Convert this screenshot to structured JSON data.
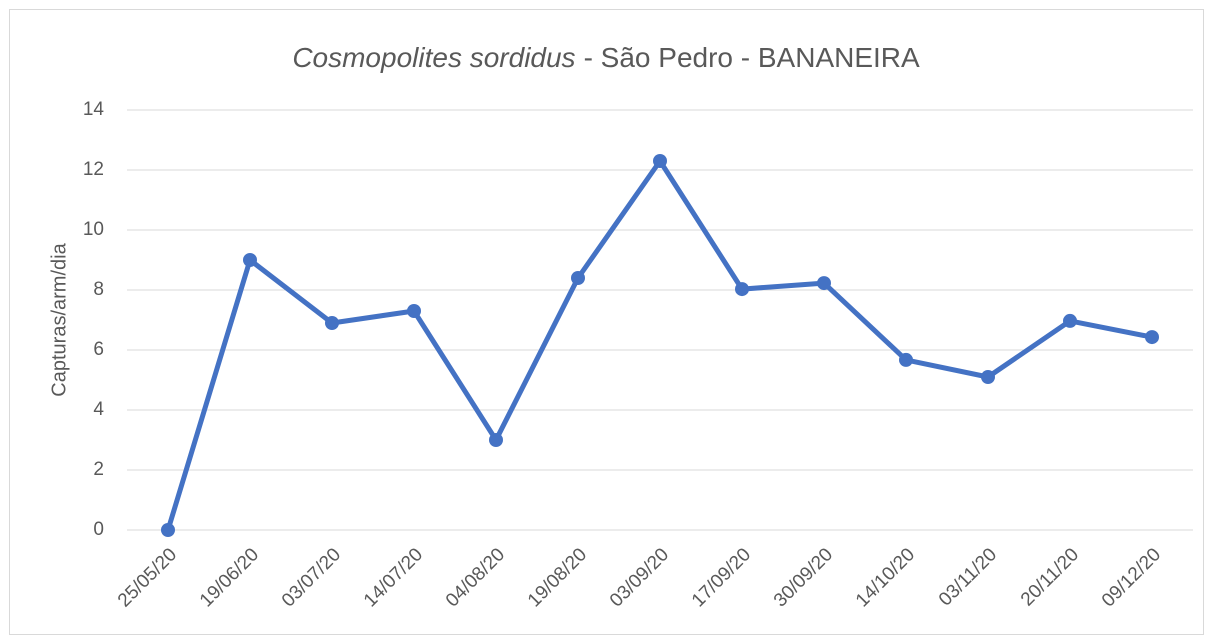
{
  "chart_data": {
    "type": "line",
    "title": {
      "italic": "Cosmopolites sordidus",
      "rest": "- São Pedro - BANANEIRA"
    },
    "y_label": "Capturas/arm/dia",
    "categories": [
      "25/05/20",
      "19/06/20",
      "03/07/20",
      "14/07/20",
      "04/08/20",
      "19/08/20",
      "03/09/20",
      "17/09/20",
      "30/09/20",
      "14/10/20",
      "03/11/20",
      "20/11/20",
      "09/12/20"
    ],
    "values": [
      0,
      9.0,
      6.9,
      7.3,
      3.0,
      8.4,
      12.3,
      8.03,
      8.23,
      5.67,
      5.1,
      6.97,
      6.43
    ],
    "color": "#4472c4",
    "ylim": [
      0,
      14
    ],
    "yticks": [
      0,
      2,
      4,
      6,
      8,
      10,
      12,
      14
    ],
    "grid": true
  }
}
